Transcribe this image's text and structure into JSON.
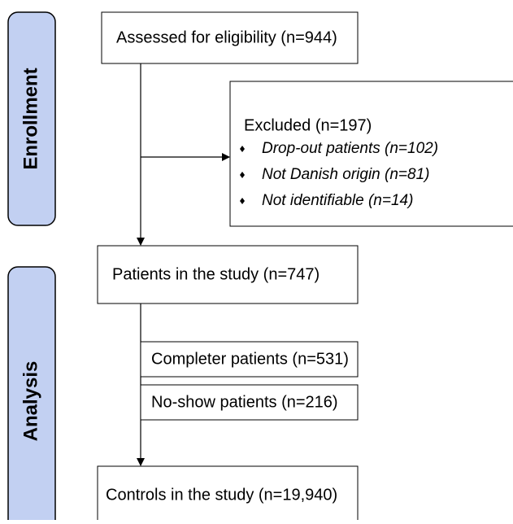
{
  "sections": {
    "enrollment": "Enrollment",
    "analysis": "Analysis"
  },
  "nodes": {
    "assessed": "Assessed for eligibility (n=944)",
    "excluded": {
      "title": "Excluded (n=197)",
      "items": [
        "Drop-out patients (n=102)",
        "Not Danish origin (n=81)",
        "Not identifiable (n=14)"
      ]
    },
    "study": "Patients in the study (n=747)",
    "completer": "Completer patients (n=531)",
    "noshow": "No-show patients (n=216)",
    "controls": "Controls in the study (n=19,940)"
  }
}
